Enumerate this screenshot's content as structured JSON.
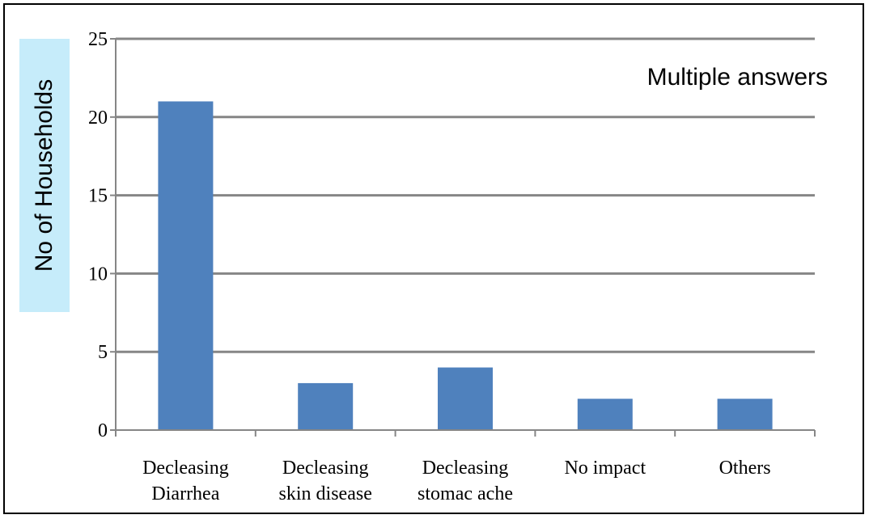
{
  "chart_data": {
    "type": "bar",
    "categories": [
      [
        "Decleasing",
        "Diarrhea"
      ],
      [
        "Decleasing",
        "skin disease"
      ],
      [
        "Decleasing",
        "stomac ache"
      ],
      [
        "No impact"
      ],
      [
        "Others"
      ]
    ],
    "values": [
      21,
      3,
      4,
      2,
      2
    ],
    "ylabel": "No of Households",
    "annotation": "Multiple answers",
    "ylim": [
      0,
      25
    ],
    "yticks": [
      "0",
      "5",
      "10",
      "15",
      "20",
      "25"
    ],
    "grid": true,
    "bar_color": "#4f81bd",
    "ylabel_bg_color": "#c6ecfa",
    "grid_color": "#868686"
  }
}
